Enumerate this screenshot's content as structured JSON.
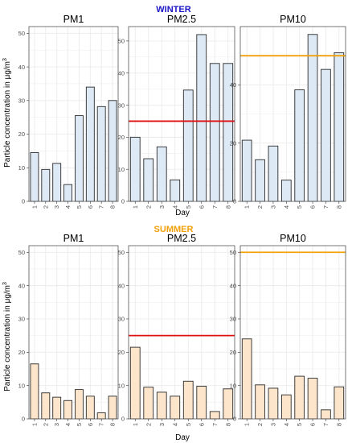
{
  "figure": {
    "seasons": [
      {
        "label": "WINTER",
        "color": "#1a14c8"
      },
      {
        "label": "SUMMER",
        "color": "#f2a10a"
      }
    ],
    "ylabel": {
      "main": "Particle concentration in μg/m",
      "sup": "3"
    },
    "xlabel": "Day"
  },
  "style": {
    "winter_fill": "#dde9f5",
    "summer_fill": "#fde5cb",
    "bar_stroke": "#2b2b2b",
    "grid_color": "#ebebeb",
    "panel_border": "#555555",
    "pm25_limit_color": "#e01010",
    "pm10_limit_color": "#f2a10a"
  },
  "chart_data": [
    {
      "type": "bar",
      "season": "WINTER",
      "title": "PM1",
      "categories": [
        "1",
        "2",
        "3",
        "4",
        "5",
        "6",
        "7",
        "8"
      ],
      "values": [
        14.5,
        9.5,
        11.3,
        5.0,
        25.5,
        34.0,
        28.2,
        30.0
      ],
      "ylim": [
        0,
        52
      ],
      "yticks": [
        0,
        10,
        20,
        30,
        40,
        50
      ],
      "limit_line": null
    },
    {
      "type": "bar",
      "season": "WINTER",
      "title": "PM2.5",
      "categories": [
        "1",
        "2",
        "3",
        "4",
        "5",
        "6",
        "7",
        "8"
      ],
      "values": [
        20.0,
        13.3,
        17.0,
        6.7,
        34.7,
        52.0,
        43.0,
        43.0
      ],
      "ylim": [
        0,
        54.5
      ],
      "yticks": [
        0,
        10,
        20,
        30,
        40,
        50
      ],
      "limit_line": 25
    },
    {
      "type": "bar",
      "season": "WINTER",
      "title": "PM10",
      "categories": [
        "1",
        "2",
        "3",
        "4",
        "5",
        "6",
        "7",
        "8"
      ],
      "values": [
        21.0,
        14.3,
        19.0,
        7.3,
        38.3,
        57.3,
        45.3,
        51.0
      ],
      "ylim": [
        0,
        60
      ],
      "yticks": [
        0,
        20,
        40
      ],
      "limit_line": 50
    },
    {
      "type": "bar",
      "season": "SUMMER",
      "title": "PM1",
      "categories": [
        "1",
        "2",
        "3",
        "4",
        "5",
        "6",
        "7",
        "8"
      ],
      "values": [
        16.5,
        7.8,
        6.5,
        5.5,
        8.8,
        6.8,
        1.8,
        6.8
      ],
      "ylim": [
        0,
        52
      ],
      "yticks": [
        0,
        10,
        20,
        30,
        40,
        50
      ],
      "limit_line": null
    },
    {
      "type": "bar",
      "season": "SUMMER",
      "title": "PM2.5",
      "categories": [
        "1",
        "2",
        "3",
        "4",
        "5",
        "6",
        "7",
        "8"
      ],
      "values": [
        21.5,
        9.5,
        8.0,
        6.8,
        11.3,
        9.8,
        2.2,
        9.0
      ],
      "ylim": [
        0,
        52
      ],
      "yticks": [
        0,
        10,
        20,
        30,
        40,
        50
      ],
      "limit_line": 25
    },
    {
      "type": "bar",
      "season": "SUMMER",
      "title": "PM10",
      "categories": [
        "1",
        "2",
        "3",
        "4",
        "5",
        "6",
        "7",
        "8"
      ],
      "values": [
        24.0,
        10.2,
        9.2,
        7.2,
        12.8,
        12.2,
        2.7,
        9.6
      ],
      "ylim": [
        0,
        52
      ],
      "yticks": [
        0,
        10,
        20,
        30,
        40,
        50
      ],
      "limit_line": 50
    }
  ]
}
